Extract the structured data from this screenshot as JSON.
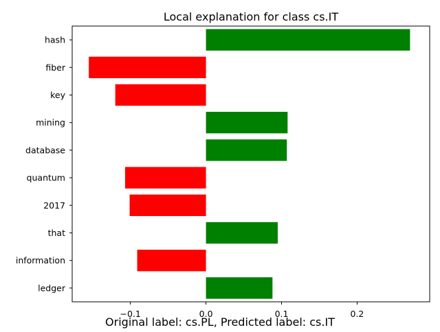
{
  "chart_data": {
    "type": "bar",
    "orientation": "horizontal",
    "title": "Local explanation for class cs.IT",
    "caption": "Original label: cs.PL, Predicted label: cs.IT",
    "xlabel": "",
    "ylabel": "",
    "categories": [
      "hash",
      "fiber",
      "key",
      "mining",
      "database",
      "quantum",
      "2017",
      "that",
      "information",
      "ledger"
    ],
    "values": [
      0.27,
      -0.155,
      -0.12,
      0.108,
      0.107,
      -0.107,
      -0.101,
      0.095,
      -0.091,
      0.088
    ],
    "xlim": [
      -0.177,
      0.296
    ],
    "xticks": [
      -0.1,
      0.0,
      0.1,
      0.2
    ],
    "xtick_labels": [
      "−0.1",
      "0.0",
      "0.1",
      "0.2"
    ],
    "positive_color": "#008000",
    "negative_color": "#ff0000",
    "grid": false,
    "legend": "none"
  }
}
